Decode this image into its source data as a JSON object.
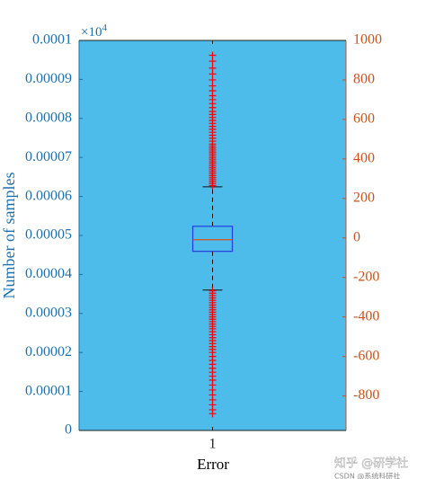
{
  "chart_data": {
    "type": "box",
    "ylabel": "Number of samples",
    "xlabel": "Error",
    "categories": [
      "1"
    ],
    "ylim": [
      0,
      0.0001
    ],
    "yticks": [
      0,
      1e-05,
      2e-05,
      3e-05,
      4e-05,
      5e-05,
      6e-05,
      7e-05,
      8e-05,
      9e-05,
      0.0001
    ],
    "y2lim": [
      -975,
      1000
    ],
    "y2ticks": [
      -800,
      -600,
      -400,
      -200,
      0,
      200,
      400,
      600,
      800,
      1000
    ],
    "exponent_base": "×10",
    "exponent_power": "4",
    "background": "#4dbcea",
    "y_color": "#1a6fae",
    "y2_color": "#c8531c",
    "series": [
      {
        "axis": "y2",
        "box_color": "#1f3fe0",
        "median_color": "#d95319",
        "outlier_color": "#ff0000",
        "q1": -68,
        "median": -9,
        "q3": 59,
        "whisker_low": -264,
        "whisker_high": 259,
        "outliers": [
          265,
          275,
          285,
          295,
          305,
          315,
          325,
          335,
          345,
          355,
          365,
          375,
          385,
          395,
          405,
          415,
          425,
          435,
          445,
          455,
          465,
          475,
          490,
          505,
          520,
          535,
          550,
          565,
          580,
          595,
          610,
          625,
          640,
          660,
          680,
          700,
          720,
          745,
          770,
          800,
          830,
          860,
          895,
          925,
          -268,
          -280,
          -292,
          -304,
          -316,
          -328,
          -340,
          -352,
          -364,
          -376,
          -388,
          -400,
          -412,
          -424,
          -436,
          -448,
          -460,
          -475,
          -490,
          -505,
          -520,
          -535,
          -550,
          -565,
          -580,
          -600,
          -620,
          -640,
          -660,
          -680,
          -700,
          -720,
          -745,
          -770,
          -795,
          -820,
          -845,
          -870,
          -890
        ]
      }
    ],
    "watermark": "知乎 @研学社",
    "watermark_small": "CSDN @系统科研社"
  }
}
